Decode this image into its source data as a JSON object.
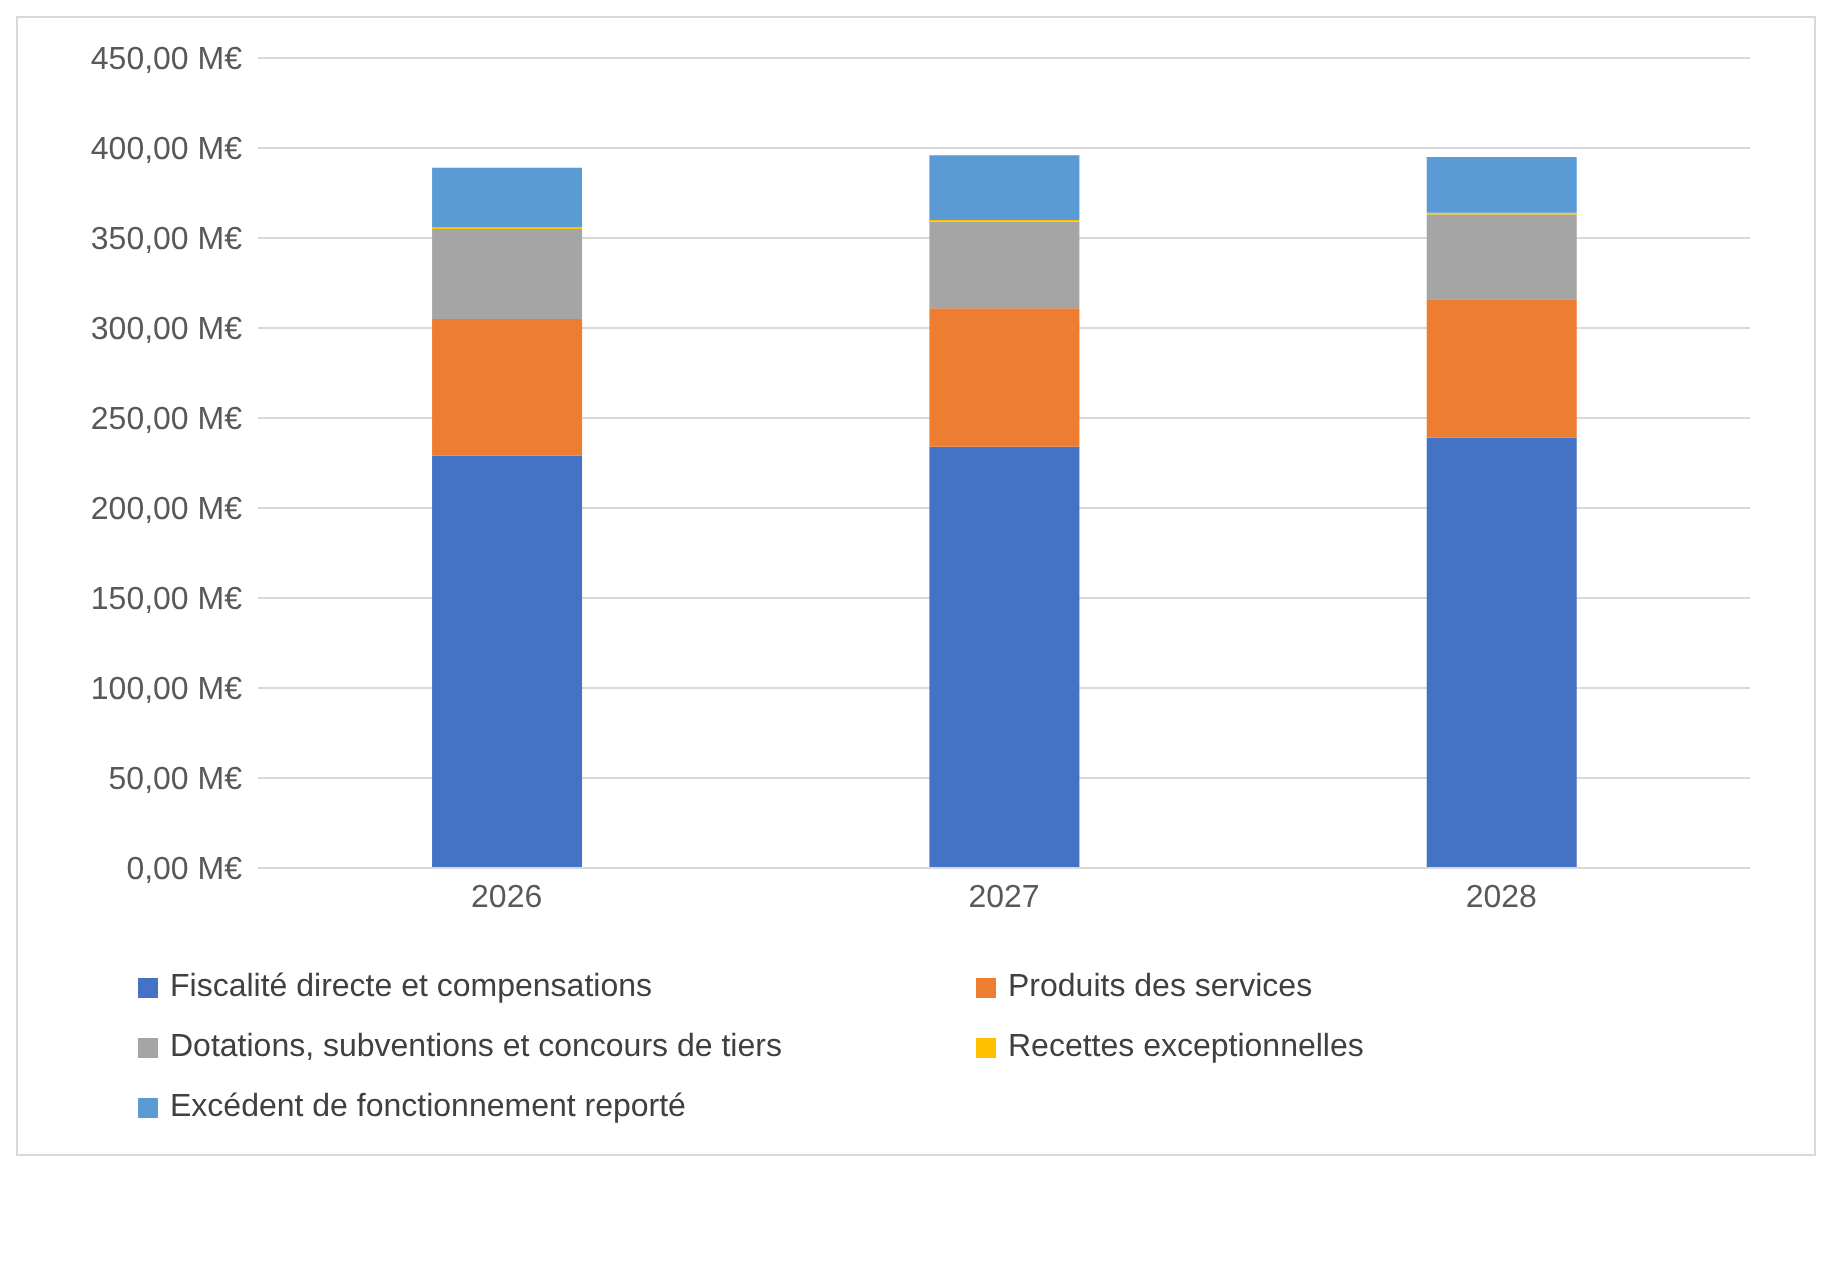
{
  "chart_data": {
    "type": "bar",
    "stacked": true,
    "categories": [
      "2026",
      "2027",
      "2028"
    ],
    "series": [
      {
        "name": "Fiscalité directe et compensations",
        "color": "#4472c4",
        "values": [
          229,
          234,
          239
        ]
      },
      {
        "name": "Produits des services",
        "color": "#ed7d31",
        "values": [
          76,
          77,
          77
        ]
      },
      {
        "name": "Dotations, subventions et concours de tiers",
        "color": "#a5a5a5",
        "values": [
          50,
          48,
          47
        ]
      },
      {
        "name": "Recettes exceptionnelles",
        "color": "#ffc000",
        "values": [
          1,
          1,
          1
        ]
      },
      {
        "name": "Excédent de fonctionnement reporté",
        "color": "#5b9bd5",
        "values": [
          33,
          36,
          31
        ]
      }
    ],
    "ylim": [
      0,
      450
    ],
    "yticks": [
      {
        "value": 0,
        "label": "0,00 M€"
      },
      {
        "value": 50,
        "label": "50,00 M€"
      },
      {
        "value": 100,
        "label": "100,00 M€"
      },
      {
        "value": 150,
        "label": "150,00 M€"
      },
      {
        "value": 200,
        "label": "200,00 M€"
      },
      {
        "value": 250,
        "label": "250,00 M€"
      },
      {
        "value": 300,
        "label": "300,00 M€"
      },
      {
        "value": 350,
        "label": "350,00 M€"
      },
      {
        "value": 400,
        "label": "400,00 M€"
      },
      {
        "value": 450,
        "label": "450,00 M€"
      }
    ],
    "grid": "y",
    "legend": "bottom"
  }
}
